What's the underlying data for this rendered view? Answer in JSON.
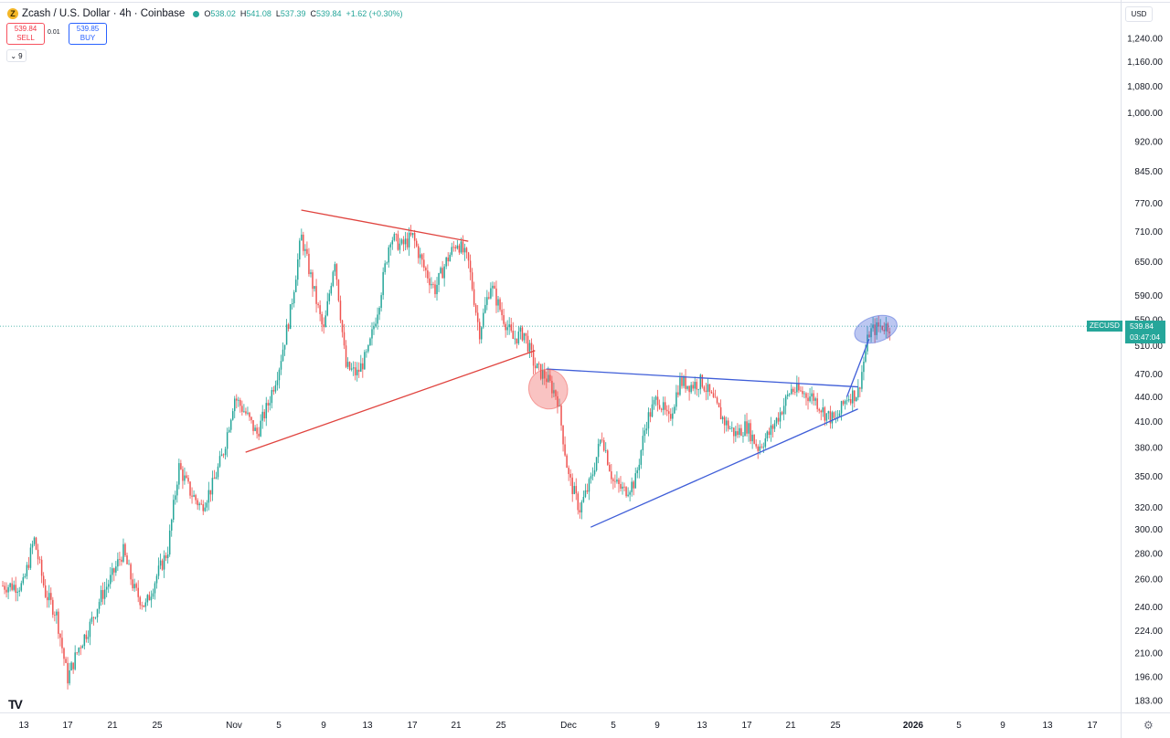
{
  "header": {
    "coin_symbol": "Z",
    "title": "Zcash / U.S. Dollar · 4h · Coinbase",
    "ohlc": {
      "o_label": "O",
      "o": "538.02",
      "h_label": "H",
      "h": "541.08",
      "l_label": "L",
      "l": "537.39",
      "c_label": "C",
      "c": "539.84",
      "change": "+1.62 (+0.30%)"
    }
  },
  "trade": {
    "sell_price": "539.84",
    "sell_label": "SELL",
    "spread": "0.01",
    "buy_price": "539.85",
    "buy_label": "BUY"
  },
  "indicator_toggle": "9",
  "currency": "USD",
  "last_price": {
    "symbol": "ZECUSD",
    "price": "539.84",
    "countdown": "03:47:04"
  },
  "logo_text": "TV",
  "colors": {
    "up": "#26a69a",
    "down": "#ef5350",
    "red_line": "#e0443f",
    "blue_line": "#3f5ed8",
    "red_ellipse": "rgba(239,83,80,0.35)",
    "blue_ellipse": "rgba(63,94,216,0.35)"
  },
  "chart_data": {
    "type": "candlestick",
    "symbol": "ZECUSD",
    "timeframe": "4h",
    "scale": "log",
    "ylim": [
      180,
      1300
    ],
    "y_ticks": [
      "1,240.00",
      "1,160.00",
      "1,080.00",
      "1,000.00",
      "920.00",
      "845.00",
      "770.00",
      "710.00",
      "650.00",
      "590.00",
      "550.00",
      "510.00",
      "470.00",
      "440.00",
      "410.00",
      "380.00",
      "350.00",
      "320.00",
      "300.00",
      "280.00",
      "260.00",
      "240.00",
      "224.00",
      "210.00",
      "196.00",
      "183.00"
    ],
    "x_ticks": [
      "13",
      "17",
      "21",
      "25",
      "Nov",
      "5",
      "9",
      "13",
      "17",
      "21",
      "25",
      "Dec",
      "5",
      "9",
      "13",
      "17",
      "21",
      "25",
      "2026",
      "5",
      "9",
      "13",
      "17"
    ],
    "last_price": 539.84,
    "price_path": [
      [
        "Oct 13",
        255
      ],
      [
        "Oct 14",
        292
      ],
      [
        "Oct 15",
        250
      ],
      [
        "Oct 16",
        235
      ],
      [
        "Oct 17",
        195
      ],
      [
        "Oct 18",
        213
      ],
      [
        "Oct 19",
        227
      ],
      [
        "Oct 20",
        247
      ],
      [
        "Oct 21",
        262
      ],
      [
        "Oct 22",
        282
      ],
      [
        "Oct 23",
        252
      ],
      [
        "Oct 24",
        240
      ],
      [
        "Oct 25",
        262
      ],
      [
        "Oct 26",
        282
      ],
      [
        "Oct 27",
        360
      ],
      [
        "Oct 28",
        335
      ],
      [
        "Oct 29",
        320
      ],
      [
        "Oct 30",
        340
      ],
      [
        "Oct 31",
        375
      ],
      [
        "Nov 1",
        440
      ],
      [
        "Nov 2",
        420
      ],
      [
        "Nov 3",
        395
      ],
      [
        "Nov 4",
        430
      ],
      [
        "Nov 5",
        480
      ],
      [
        "Nov 6",
        560
      ],
      [
        "Nov 7",
        700
      ],
      [
        "Nov 8",
        610
      ],
      [
        "Nov 9",
        530
      ],
      [
        "Nov 10",
        660
      ],
      [
        "Nov 11",
        480
      ],
      [
        "Nov 12",
        470
      ],
      [
        "Nov 13",
        500
      ],
      [
        "Nov 14",
        580
      ],
      [
        "Nov 15",
        700
      ],
      [
        "Nov 16",
        680
      ],
      [
        "Nov 17",
        700
      ],
      [
        "Nov 18",
        640
      ],
      [
        "Nov 19",
        600
      ],
      [
        "Nov 20",
        650
      ],
      [
        "Nov 21",
        690
      ],
      [
        "Nov 22",
        650
      ],
      [
        "Nov 23",
        530
      ],
      [
        "Nov 24",
        610
      ],
      [
        "Nov 25",
        560
      ],
      [
        "Nov 26",
        520
      ],
      [
        "Nov 27",
        530
      ],
      [
        "Nov 28",
        480
      ],
      [
        "Nov 29",
        465
      ],
      [
        "Nov 30",
        440
      ],
      [
        "Dec 1",
        350
      ],
      [
        "Dec 2",
        318
      ],
      [
        "Dec 3",
        345
      ],
      [
        "Dec 4",
        395
      ],
      [
        "Dec 5",
        345
      ],
      [
        "Dec 6",
        335
      ],
      [
        "Dec 7",
        345
      ],
      [
        "Dec 8",
        410
      ],
      [
        "Dec 9",
        440
      ],
      [
        "Dec 10",
        410
      ],
      [
        "Dec 11",
        460
      ],
      [
        "Dec 12",
        455
      ],
      [
        "Dec 13",
        460
      ],
      [
        "Dec 14",
        435
      ],
      [
        "Dec 15",
        410
      ],
      [
        "Dec 16",
        395
      ],
      [
        "Dec 17",
        405
      ],
      [
        "Dec 18",
        380
      ],
      [
        "Dec 19",
        395
      ],
      [
        "Dec 20",
        420
      ],
      [
        "Dec 21",
        450
      ],
      [
        "Dec 22",
        445
      ],
      [
        "Dec 23",
        440
      ],
      [
        "Dec 24",
        420
      ],
      [
        "Dec 25",
        410
      ],
      [
        "Dec 26",
        440
      ],
      [
        "Dec 27",
        445
      ],
      [
        "Dec 28",
        530
      ],
      [
        "Dec 29",
        540
      ],
      [
        "Dec 30",
        539.84
      ]
    ],
    "annotations": [
      {
        "type": "trendline",
        "color": "red",
        "from": [
          "Nov 7",
          755
        ],
        "to": [
          "Nov 22",
          690
        ]
      },
      {
        "type": "trendline",
        "color": "red",
        "from": [
          "Nov 2",
          375
        ],
        "to": [
          "Nov 28",
          503
        ]
      },
      {
        "type": "trendline",
        "color": "blue",
        "from": [
          "Nov 29",
          477
        ],
        "to": [
          "Dec 27",
          453
        ]
      },
      {
        "type": "trendline",
        "color": "blue",
        "from": [
          "Dec 3",
          302
        ],
        "to": [
          "Dec 27",
          425
        ]
      },
      {
        "type": "trendline",
        "color": "blue",
        "from": [
          "Dec 26",
          440
        ],
        "to": [
          "Dec 28",
          520
        ]
      },
      {
        "type": "ellipse",
        "color": "red",
        "center": [
          "Nov 30",
          450
        ]
      },
      {
        "type": "ellipse",
        "color": "blue",
        "center": [
          "Dec 30",
          535
        ]
      }
    ]
  }
}
